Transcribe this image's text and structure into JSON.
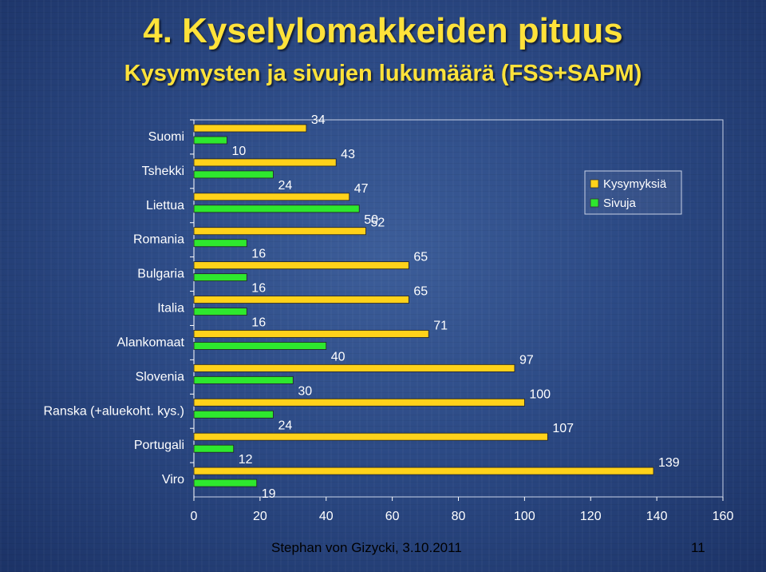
{
  "slide": {
    "title": "4. Kyselylomakkeiden pituus",
    "subtitle": "Kysymysten ja sivujen lukumäärä (FSS+SAPM)",
    "footer": "Stephan von Gizycki, 3.10.2011",
    "page_number": "11"
  },
  "colors": {
    "kysymyksia": "#ffd21a",
    "sivuja": "#2ee82e"
  },
  "chart_data": {
    "type": "bar",
    "orientation": "horizontal",
    "categories": [
      "Suomi",
      "Tshekki",
      "Liettua",
      "Romania",
      "Bulgaria",
      "Italia",
      "Alankomaat",
      "Slovenia",
      "Ranska (+aluekoht. kys.)",
      "Portugali",
      "Viro"
    ],
    "series": [
      {
        "name": "Kysymyksiä",
        "values": [
          34,
          43,
          47,
          52,
          65,
          65,
          71,
          97,
          100,
          107,
          139
        ]
      },
      {
        "name": "Sivuja",
        "values": [
          10,
          24,
          50,
          16,
          16,
          16,
          40,
          30,
          24,
          12,
          19
        ]
      }
    ],
    "xlim": [
      0,
      160
    ],
    "xticks": [
      0,
      20,
      40,
      60,
      80,
      100,
      120,
      140,
      160
    ],
    "legend_position": "top-right",
    "data_labels": true
  }
}
